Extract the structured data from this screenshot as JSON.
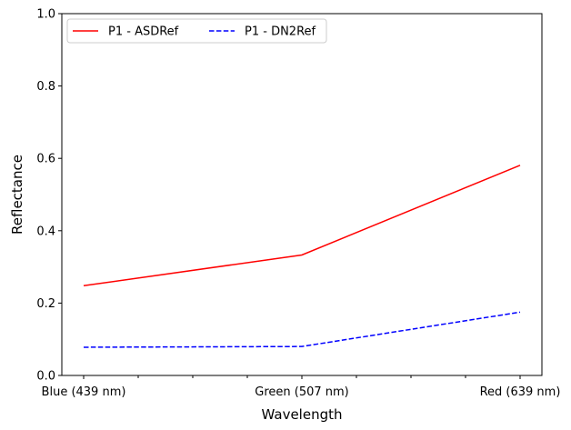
{
  "chart_data": {
    "type": "line",
    "title": "",
    "xlabel": "Wavelength",
    "ylabel": "Reflectance",
    "categories": [
      "Blue (439 nm)",
      "Green (507 nm)",
      "Red (639 nm)"
    ],
    "ylim": [
      0,
      1.0
    ],
    "yticks": [
      "0.0",
      "0.2",
      "0.4",
      "0.6",
      "0.8",
      "1.0"
    ],
    "grid": false,
    "legend_position": "top-left",
    "series": [
      {
        "name": "P1 - ASDRef",
        "values": [
          0.248,
          0.333,
          0.581
        ],
        "color": "#ff0000",
        "style": "solid"
      },
      {
        "name": "P1 - DN2Ref",
        "values": [
          0.078,
          0.08,
          0.175
        ],
        "color": "#0000ff",
        "style": "dashed"
      }
    ]
  }
}
